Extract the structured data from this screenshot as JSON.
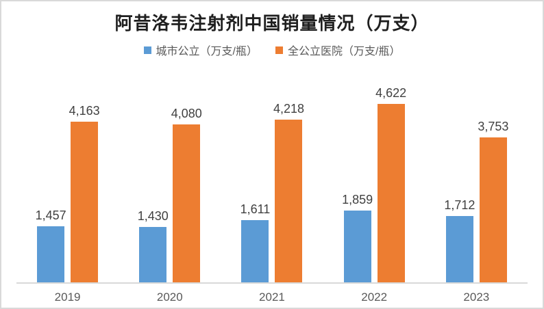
{
  "title": "阿昔洛韦注射剂中国销量情况（万支）",
  "colors": {
    "series_blue": "#5B9BD5",
    "series_orange": "#ED7D31",
    "frame_border": "#D9D9D9",
    "axis_line": "#D9D9D9",
    "title_text": "#1F1F1F",
    "data_label_text": "#404040",
    "axis_label_text": "#595959"
  },
  "chart_data": {
    "type": "bar",
    "title": "阿昔洛韦注射剂中国销量情况（万支）",
    "categories": [
      "2019",
      "2020",
      "2021",
      "2022",
      "2023"
    ],
    "series": [
      {
        "key": "city-public",
        "name": "城市公立（万支/瓶）",
        "color": "#5B9BD5",
        "values": [
          1457,
          1430,
          1611,
          1859,
          1712
        ],
        "labels": [
          "1,457",
          "1,430",
          "1,611",
          "1,859",
          "1,712"
        ]
      },
      {
        "key": "all-public-hospitals",
        "name": "全公立医院（万支/瓶）",
        "color": "#ED7D31",
        "values": [
          4163,
          4080,
          4218,
          4622,
          3753
        ],
        "labels": [
          "4,163",
          "4,080",
          "4,218",
          "4,622",
          "3,753"
        ]
      }
    ],
    "ylim": [
      0,
      5000
    ],
    "xlabel": "",
    "ylabel": "",
    "grid": false,
    "legend_position": "top",
    "data_labels": true
  }
}
